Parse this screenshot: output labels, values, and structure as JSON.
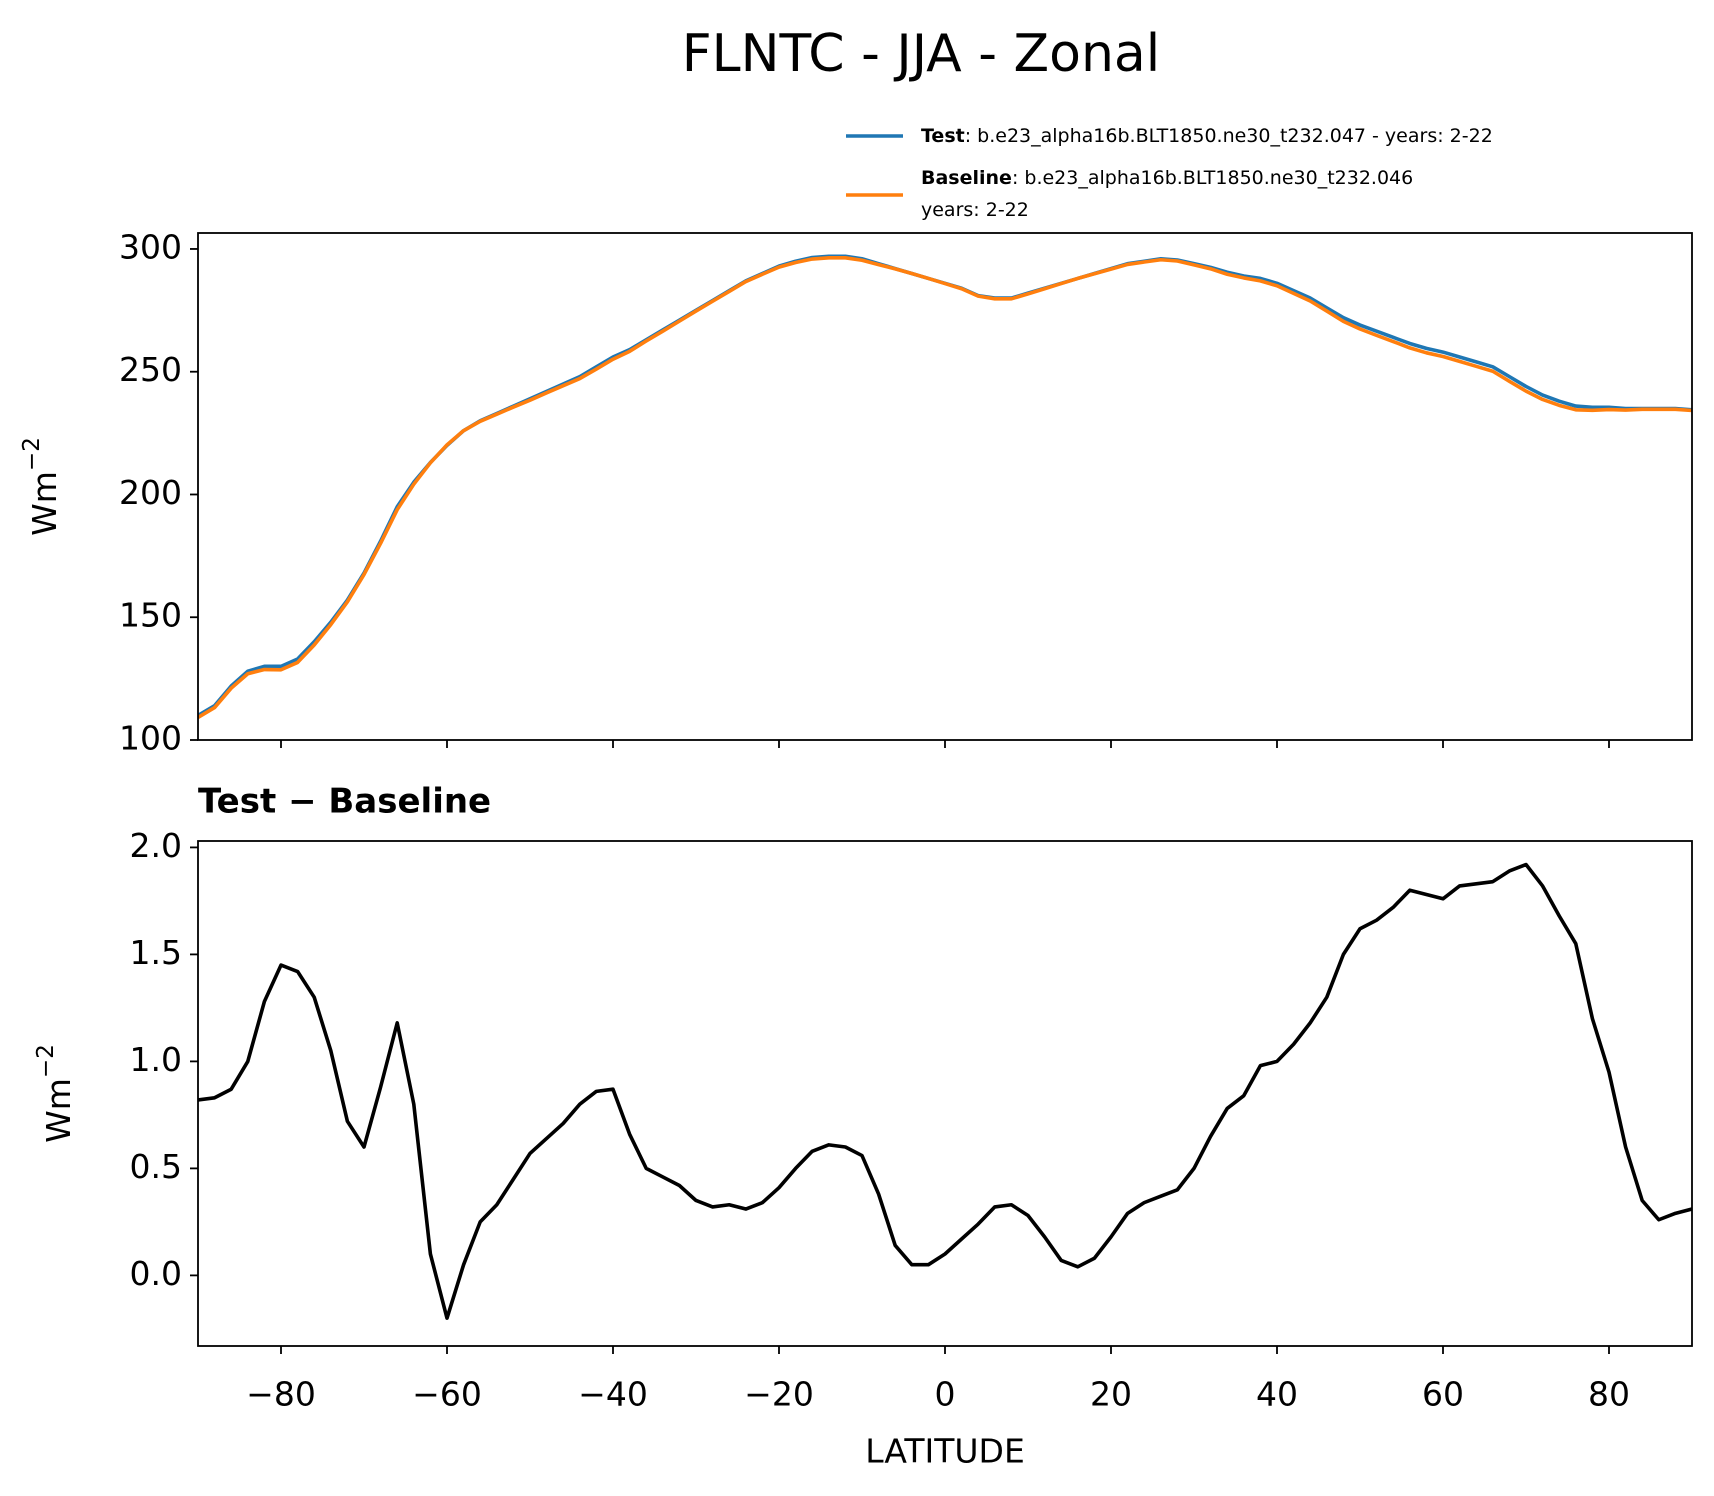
{
  "chart_data": [
    {
      "type": "line",
      "title": "FLNTC - JJA - Zonal",
      "ylabel": "Wm",
      "ylabel_sup": "−2",
      "x": [
        -90,
        -88,
        -86,
        -84,
        -82,
        -80,
        -78,
        -76,
        -74,
        -72,
        -70,
        -68,
        -66,
        -64,
        -62,
        -60,
        -58,
        -56,
        -54,
        -52,
        -50,
        -48,
        -46,
        -44,
        -42,
        -40,
        -38,
        -36,
        -34,
        -32,
        -30,
        -28,
        -26,
        -24,
        -22,
        -20,
        -18,
        -16,
        -14,
        -12,
        -10,
        -8,
        -6,
        -4,
        -2,
        0,
        2,
        4,
        6,
        8,
        10,
        12,
        14,
        16,
        18,
        20,
        22,
        24,
        26,
        28,
        30,
        32,
        34,
        36,
        38,
        40,
        42,
        44,
        46,
        48,
        50,
        52,
        54,
        56,
        58,
        60,
        62,
        64,
        66,
        68,
        70,
        72,
        74,
        76,
        78,
        80,
        82,
        84,
        86,
        88,
        90
      ],
      "series": [
        {
          "name": "Test",
          "label_lines": [
            ": b.e23_alpha16b.BLT1850.ne30_t232.047 - years: 2-22"
          ],
          "color": "#1f77b4",
          "values": [
            110,
            114,
            122,
            128,
            130,
            130,
            133,
            140,
            148,
            157,
            168,
            181,
            195,
            205,
            213,
            220,
            226,
            230,
            233,
            236,
            239,
            242,
            245,
            248,
            252,
            256,
            259,
            263,
            267,
            271,
            275,
            279,
            283,
            287,
            290,
            293,
            295,
            296.5,
            297,
            297,
            296,
            294,
            292,
            290,
            288,
            286,
            284,
            281,
            280,
            280,
            282,
            284,
            286,
            288,
            290,
            292,
            294,
            295,
            296,
            295.5,
            294,
            292.5,
            290.5,
            289,
            288,
            286,
            283,
            280,
            276,
            272,
            269,
            266.5,
            264,
            261.5,
            259.5,
            258,
            256,
            254,
            252,
            248,
            244,
            240.5,
            238,
            236,
            235.5,
            235.5,
            235,
            235,
            235,
            235,
            234.5
          ]
        },
        {
          "name": "Baseline",
          "label_lines": [
            ": b.e23_alpha16b.BLT1850.ne30_t232.046",
            "years: 2-22"
          ],
          "color": "#ff7f0e",
          "values": [
            109.2,
            113.2,
            121.1,
            127.0,
            128.7,
            128.6,
            131.6,
            138.7,
            147.0,
            156.3,
            167.4,
            180.1,
            193.8,
            204.2,
            212.9,
            220.2,
            226.0,
            229.8,
            232.7,
            235.6,
            238.4,
            241.4,
            244.3,
            247.2,
            251.1,
            255.1,
            258.3,
            262.5,
            266.5,
            270.6,
            274.7,
            278.7,
            282.7,
            286.7,
            289.7,
            292.6,
            294.5,
            295.9,
            296.4,
            296.4,
            295.4,
            293.6,
            291.9,
            290.0,
            288.0,
            285.9,
            283.8,
            280.8,
            279.7,
            279.7,
            281.7,
            283.8,
            285.9,
            288.0,
            289.9,
            291.8,
            293.7,
            294.7,
            295.6,
            295.1,
            293.5,
            291.9,
            289.7,
            288.2,
            287.0,
            285.0,
            281.9,
            278.8,
            274.7,
            270.5,
            267.4,
            264.8,
            262.3,
            259.7,
            257.7,
            256.2,
            254.2,
            252.2,
            250.2,
            246.1,
            242.1,
            238.7,
            236.3,
            234.5,
            234.3,
            234.6,
            234.4,
            234.7,
            234.7,
            234.7,
            234.2
          ]
        }
      ],
      "xlim": [
        -90,
        90
      ],
      "xticks": [
        -80,
        -60,
        -40,
        -20,
        0,
        20,
        40,
        60,
        80
      ],
      "ylim": [
        100,
        306.5
      ],
      "yticks": [
        100,
        150,
        200,
        250,
        300
      ],
      "legend": "upper right outside"
    },
    {
      "type": "line",
      "title": "Test − Baseline",
      "ylabel": "Wm",
      "ylabel_sup": "−2",
      "xlabel": "LATITUDE",
      "x": [
        -90,
        -88,
        -86,
        -84,
        -82,
        -80,
        -78,
        -76,
        -74,
        -72,
        -70,
        -68,
        -66,
        -64,
        -62,
        -60,
        -58,
        -56,
        -54,
        -52,
        -50,
        -48,
        -46,
        -44,
        -42,
        -40,
        -38,
        -36,
        -34,
        -32,
        -30,
        -28,
        -26,
        -24,
        -22,
        -20,
        -18,
        -16,
        -14,
        -12,
        -10,
        -8,
        -6,
        -4,
        -2,
        0,
        2,
        4,
        6,
        8,
        10,
        12,
        14,
        16,
        18,
        20,
        22,
        24,
        26,
        28,
        30,
        32,
        34,
        36,
        38,
        40,
        42,
        44,
        46,
        48,
        50,
        52,
        54,
        56,
        58,
        60,
        62,
        64,
        66,
        68,
        70,
        72,
        74,
        76,
        78,
        80,
        82,
        84,
        86,
        88,
        90
      ],
      "series": [
        {
          "color": "#000000",
          "values": [
            0.82,
            0.83,
            0.87,
            1.0,
            1.28,
            1.45,
            1.42,
            1.3,
            1.05,
            0.72,
            0.6,
            0.88,
            1.18,
            0.8,
            0.1,
            -0.2,
            0.05,
            0.25,
            0.33,
            0.45,
            0.57,
            0.64,
            0.71,
            0.8,
            0.86,
            0.87,
            0.66,
            0.5,
            0.46,
            0.42,
            0.35,
            0.32,
            0.33,
            0.31,
            0.34,
            0.41,
            0.5,
            0.58,
            0.61,
            0.6,
            0.56,
            0.38,
            0.14,
            0.05,
            0.05,
            0.1,
            0.17,
            0.24,
            0.32,
            0.33,
            0.28,
            0.18,
            0.07,
            0.04,
            0.08,
            0.18,
            0.29,
            0.34,
            0.37,
            0.4,
            0.5,
            0.65,
            0.78,
            0.84,
            0.98,
            1.0,
            1.08,
            1.18,
            1.3,
            1.5,
            1.62,
            1.66,
            1.72,
            1.8,
            1.78,
            1.76,
            1.82,
            1.83,
            1.84,
            1.89,
            1.92,
            1.82,
            1.68,
            1.55,
            1.2,
            0.95,
            0.6,
            0.35,
            0.26,
            0.29,
            0.31
          ]
        }
      ],
      "xlim": [
        -90,
        90
      ],
      "xticks": [
        {
          "value": -80,
          "label": "−80"
        },
        {
          "value": -60,
          "label": "−60"
        },
        {
          "value": -40,
          "label": "−40"
        },
        {
          "value": -20,
          "label": "−20"
        },
        0,
        20,
        40,
        60,
        80
      ],
      "ylim": [
        -0.33,
        2.03
      ],
      "yticks": [
        {
          "value": 0,
          "label": "0.0"
        },
        0.5,
        {
          "value": 1,
          "label": "1.0"
        },
        1.5,
        {
          "value": 2,
          "label": "2.0"
        }
      ]
    }
  ]
}
